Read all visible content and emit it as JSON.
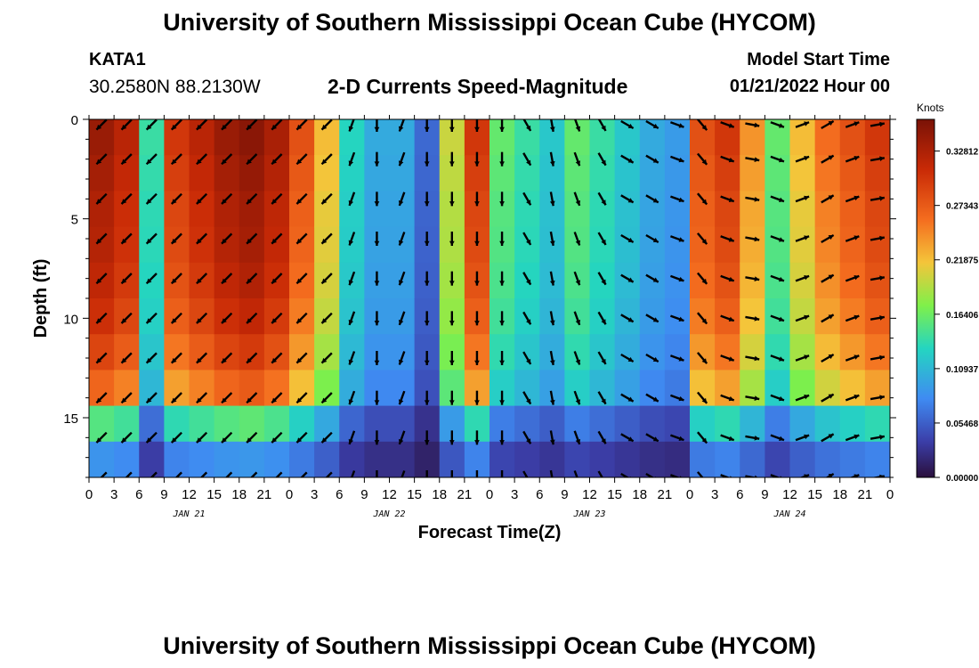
{
  "header": {
    "title": "University of Southern Mississippi Ocean Cube (HYCOM)",
    "station": "KATA1",
    "coords": "30.2580N  88.2130W",
    "subtitle": "2-D Currents Speed-Magnitude",
    "model_start_label": "Model Start Time",
    "model_start_value": "01/21/2022 Hour 00"
  },
  "footer": {
    "title": "University of Southern Mississippi Ocean Cube (HYCOM)"
  },
  "colors": {
    "low": "#2a0f3c",
    "mid": "#2eed8e",
    "high": "#7a1206",
    "arrow": "#000000"
  },
  "chart_data": {
    "type": "heatmap",
    "title": "2-D Currents Speed-Magnitude",
    "xlabel": "Forecast Time(Z)",
    "ylabel": "Depth (ft)",
    "x_hours_range": [
      0,
      96
    ],
    "x_tick_hours": [
      0,
      3,
      6,
      9,
      12,
      15,
      18,
      21,
      24,
      27,
      30,
      33,
      36,
      39,
      42,
      45,
      48,
      51,
      54,
      57,
      60,
      63,
      66,
      69,
      72,
      75,
      78,
      81,
      84,
      87,
      90,
      93,
      96
    ],
    "x_tick_labels": [
      "0",
      "3",
      "6",
      "9",
      "12",
      "15",
      "18",
      "21",
      "0",
      "3",
      "6",
      "9",
      "12",
      "15",
      "18",
      "21",
      "0",
      "3",
      "6",
      "9",
      "12",
      "15",
      "18",
      "21",
      "0",
      "3",
      "6",
      "9",
      "12",
      "15",
      "18",
      "21",
      "0"
    ],
    "day_labels": [
      {
        "hour": 12,
        "label": "JAN 21"
      },
      {
        "hour": 36,
        "label": "JAN 22"
      },
      {
        "hour": 60,
        "label": "JAN 23"
      },
      {
        "hour": 84,
        "label": "JAN 24"
      }
    ],
    "ylim": [
      18,
      0
    ],
    "y_ticks": [
      0,
      5,
      10,
      15
    ],
    "colorbar": {
      "title": "Knots",
      "ticks": [
        0.0,
        0.05468,
        0.10937,
        0.16406,
        0.21875,
        0.27343,
        0.32812
      ],
      "tick_labels": [
        "0.00000",
        "0.05468",
        "0.10937",
        "0.16406",
        "0.21875",
        "0.27343",
        "0.32812"
      ],
      "range": [
        0,
        0.36
      ]
    },
    "time_hours": [
      1.5,
      4.5,
      7.5,
      10.5,
      13.5,
      16.5,
      19.5,
      22.5,
      25.5,
      28.5,
      31.5,
      34.5,
      37.5,
      40.5,
      43.5,
      46.5,
      49.5,
      52.5,
      55.5,
      58.5,
      61.5,
      64.5,
      67.5,
      70.5,
      73.5,
      76.5,
      79.5,
      82.5,
      85.5,
      88.5,
      91.5,
      94.5
    ],
    "depths_ft": [
      0,
      2,
      4,
      6,
      8,
      10,
      12,
      14,
      16,
      18
    ],
    "speed_profiles_knots": [
      0.34,
      0.32,
      0.14,
      0.3,
      0.32,
      0.34,
      0.35,
      0.33,
      0.28,
      0.22,
      0.13,
      0.1,
      0.1,
      0.06,
      0.2,
      0.3,
      0.16,
      0.14,
      0.12,
      0.16,
      0.14,
      0.12,
      0.1,
      0.09,
      0.28,
      0.3,
      0.24,
      0.16,
      0.22,
      0.26,
      0.28,
      0.3
    ],
    "depth_decay": [
      1.0,
      0.98,
      0.96,
      0.95,
      0.93,
      0.9,
      0.85,
      0.78,
      0.45,
      0.25
    ],
    "direction_deg": [
      225,
      225,
      225,
      225,
      225,
      225,
      225,
      225,
      225,
      225,
      200,
      180,
      200,
      180,
      180,
      180,
      180,
      150,
      170,
      160,
      150,
      120,
      120,
      110,
      140,
      110,
      100,
      110,
      70,
      60,
      70,
      80
    ]
  }
}
